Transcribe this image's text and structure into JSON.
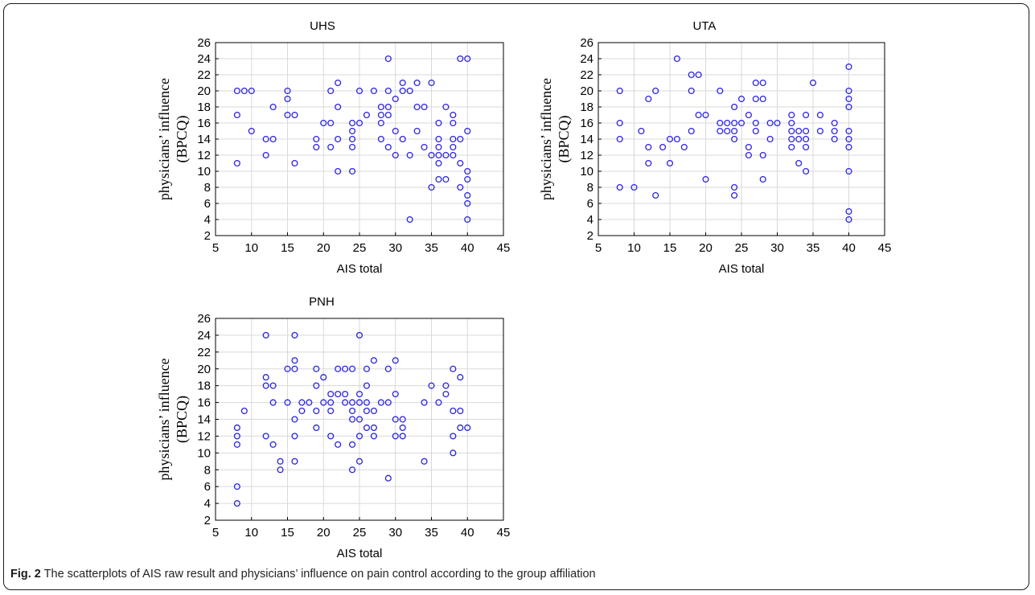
{
  "caption": {
    "label": "Fig. 2",
    "text": "The scatterplots of AIS raw result and physicians’ influence on pain control according to the group affiliation"
  },
  "colors": {
    "marker": "#2a24dc",
    "grid": "#d9d9d9",
    "axis": "#000000"
  },
  "chart_data": [
    {
      "type": "scatter",
      "title": "UHS",
      "xlabel": "AIS total",
      "ylabel_lines": [
        "physicians’ influence",
        "(BPCQ)"
      ],
      "xlim": [
        5,
        45
      ],
      "ylim": [
        2,
        26
      ],
      "xticks": [
        5,
        10,
        15,
        20,
        25,
        30,
        35,
        40,
        45
      ],
      "yticks": [
        2,
        4,
        6,
        8,
        10,
        12,
        14,
        16,
        18,
        20,
        22,
        24,
        26
      ],
      "grid": true,
      "points": [
        [
          8,
          20
        ],
        [
          8,
          17
        ],
        [
          8,
          11
        ],
        [
          9,
          20
        ],
        [
          10,
          20
        ],
        [
          10,
          15
        ],
        [
          12,
          14
        ],
        [
          12,
          12
        ],
        [
          13,
          18
        ],
        [
          13,
          14
        ],
        [
          15,
          20
        ],
        [
          15,
          19
        ],
        [
          15,
          17
        ],
        [
          16,
          17
        ],
        [
          16,
          11
        ],
        [
          19,
          14
        ],
        [
          19,
          13
        ],
        [
          20,
          16
        ],
        [
          21,
          20
        ],
        [
          21,
          16
        ],
        [
          21,
          13
        ],
        [
          22,
          21
        ],
        [
          22,
          18
        ],
        [
          22,
          14
        ],
        [
          22,
          10
        ],
        [
          24,
          16
        ],
        [
          24,
          15
        ],
        [
          24,
          14
        ],
        [
          24,
          13
        ],
        [
          24,
          10
        ],
        [
          25,
          20
        ],
        [
          25,
          16
        ],
        [
          26,
          17
        ],
        [
          27,
          20
        ],
        [
          28,
          18
        ],
        [
          28,
          17
        ],
        [
          28,
          16
        ],
        [
          28,
          14
        ],
        [
          29,
          24
        ],
        [
          29,
          20
        ],
        [
          29,
          18
        ],
        [
          29,
          17
        ],
        [
          29,
          13
        ],
        [
          30,
          19
        ],
        [
          30,
          15
        ],
        [
          30,
          12
        ],
        [
          31,
          21
        ],
        [
          31,
          20
        ],
        [
          31,
          14
        ],
        [
          32,
          20
        ],
        [
          32,
          12
        ],
        [
          32,
          4
        ],
        [
          33,
          21
        ],
        [
          33,
          18
        ],
        [
          33,
          15
        ],
        [
          34,
          18
        ],
        [
          34,
          13
        ],
        [
          35,
          21
        ],
        [
          35,
          12
        ],
        [
          35,
          8
        ],
        [
          36,
          16
        ],
        [
          36,
          14
        ],
        [
          36,
          13
        ],
        [
          36,
          12
        ],
        [
          36,
          11
        ],
        [
          36,
          9
        ],
        [
          37,
          18
        ],
        [
          37,
          12
        ],
        [
          37,
          9
        ],
        [
          38,
          17
        ],
        [
          38,
          16
        ],
        [
          38,
          14
        ],
        [
          38,
          13
        ],
        [
          38,
          12
        ],
        [
          39,
          24
        ],
        [
          39,
          14
        ],
        [
          39,
          11
        ],
        [
          39,
          8
        ],
        [
          40,
          24
        ],
        [
          40,
          15
        ],
        [
          40,
          10
        ],
        [
          40,
          9
        ],
        [
          40,
          7
        ],
        [
          40,
          6
        ],
        [
          40,
          4
        ]
      ]
    },
    {
      "type": "scatter",
      "title": "UTA",
      "xlabel": "AIS total",
      "ylabel_lines": [
        "physicians’ influence",
        "(BPCQ)"
      ],
      "xlim": [
        5,
        45
      ],
      "ylim": [
        2,
        26
      ],
      "xticks": [
        5,
        10,
        15,
        20,
        25,
        30,
        35,
        40,
        45
      ],
      "yticks": [
        2,
        4,
        6,
        8,
        10,
        12,
        14,
        16,
        18,
        20,
        22,
        24,
        26
      ],
      "grid": true,
      "points": [
        [
          8,
          20
        ],
        [
          8,
          16
        ],
        [
          8,
          14
        ],
        [
          8,
          8
        ],
        [
          10,
          8
        ],
        [
          11,
          15
        ],
        [
          12,
          19
        ],
        [
          12,
          13
        ],
        [
          12,
          11
        ],
        [
          13,
          20
        ],
        [
          13,
          7
        ],
        [
          14,
          13
        ],
        [
          15,
          14
        ],
        [
          15,
          11
        ],
        [
          16,
          24
        ],
        [
          16,
          14
        ],
        [
          17,
          13
        ],
        [
          18,
          22
        ],
        [
          18,
          20
        ],
        [
          18,
          15
        ],
        [
          19,
          22
        ],
        [
          19,
          17
        ],
        [
          20,
          17
        ],
        [
          20,
          9
        ],
        [
          22,
          20
        ],
        [
          22,
          16
        ],
        [
          22,
          15
        ],
        [
          23,
          16
        ],
        [
          23,
          15
        ],
        [
          24,
          18
        ],
        [
          24,
          16
        ],
        [
          24,
          15
        ],
        [
          24,
          14
        ],
        [
          24,
          8
        ],
        [
          24,
          7
        ],
        [
          25,
          19
        ],
        [
          25,
          16
        ],
        [
          26,
          17
        ],
        [
          26,
          13
        ],
        [
          26,
          12
        ],
        [
          27,
          21
        ],
        [
          27,
          19
        ],
        [
          27,
          16
        ],
        [
          27,
          15
        ],
        [
          28,
          21
        ],
        [
          28,
          19
        ],
        [
          28,
          12
        ],
        [
          28,
          9
        ],
        [
          29,
          16
        ],
        [
          29,
          14
        ],
        [
          30,
          16
        ],
        [
          32,
          17
        ],
        [
          32,
          16
        ],
        [
          32,
          15
        ],
        [
          32,
          14
        ],
        [
          32,
          13
        ],
        [
          33,
          15
        ],
        [
          33,
          14
        ],
        [
          33,
          11
        ],
        [
          34,
          17
        ],
        [
          34,
          15
        ],
        [
          34,
          14
        ],
        [
          34,
          13
        ],
        [
          34,
          10
        ],
        [
          35,
          21
        ],
        [
          36,
          17
        ],
        [
          36,
          15
        ],
        [
          38,
          16
        ],
        [
          38,
          15
        ],
        [
          38,
          14
        ],
        [
          40,
          23
        ],
        [
          40,
          20
        ],
        [
          40,
          19
        ],
        [
          40,
          18
        ],
        [
          40,
          15
        ],
        [
          40,
          14
        ],
        [
          40,
          13
        ],
        [
          40,
          10
        ],
        [
          40,
          5
        ],
        [
          40,
          4
        ]
      ]
    },
    {
      "type": "scatter",
      "title": "PNH",
      "xlabel": "AIS total",
      "ylabel_lines": [
        "physicians’ influence",
        "(BPCQ)"
      ],
      "xlim": [
        5,
        45
      ],
      "ylim": [
        2,
        26
      ],
      "xticks": [
        5,
        10,
        15,
        20,
        25,
        30,
        35,
        40,
        45
      ],
      "yticks": [
        2,
        4,
        6,
        8,
        10,
        12,
        14,
        16,
        18,
        20,
        22,
        24,
        26
      ],
      "grid": true,
      "points": [
        [
          8,
          13
        ],
        [
          8,
          12
        ],
        [
          8,
          11
        ],
        [
          8,
          6
        ],
        [
          8,
          4
        ],
        [
          9,
          15
        ],
        [
          12,
          24
        ],
        [
          12,
          19
        ],
        [
          12,
          18
        ],
        [
          12,
          12
        ],
        [
          13,
          18
        ],
        [
          13,
          16
        ],
        [
          13,
          11
        ],
        [
          14,
          9
        ],
        [
          14,
          8
        ],
        [
          15,
          20
        ],
        [
          15,
          16
        ],
        [
          16,
          24
        ],
        [
          16,
          21
        ],
        [
          16,
          20
        ],
        [
          16,
          14
        ],
        [
          16,
          12
        ],
        [
          16,
          9
        ],
        [
          17,
          16
        ],
        [
          17,
          15
        ],
        [
          18,
          16
        ],
        [
          19,
          20
        ],
        [
          19,
          18
        ],
        [
          19,
          15
        ],
        [
          19,
          13
        ],
        [
          20,
          19
        ],
        [
          20,
          16
        ],
        [
          21,
          17
        ],
        [
          21,
          16
        ],
        [
          21,
          15
        ],
        [
          21,
          12
        ],
        [
          22,
          20
        ],
        [
          22,
          17
        ],
        [
          22,
          11
        ],
        [
          23,
          20
        ],
        [
          23,
          17
        ],
        [
          23,
          16
        ],
        [
          24,
          20
        ],
        [
          24,
          16
        ],
        [
          24,
          15
        ],
        [
          24,
          14
        ],
        [
          24,
          11
        ],
        [
          24,
          8
        ],
        [
          25,
          24
        ],
        [
          25,
          17
        ],
        [
          25,
          16
        ],
        [
          25,
          14
        ],
        [
          25,
          12
        ],
        [
          25,
          9
        ],
        [
          26,
          20
        ],
        [
          26,
          18
        ],
        [
          26,
          16
        ],
        [
          26,
          15
        ],
        [
          26,
          13
        ],
        [
          27,
          21
        ],
        [
          27,
          15
        ],
        [
          27,
          13
        ],
        [
          27,
          12
        ],
        [
          28,
          16
        ],
        [
          29,
          20
        ],
        [
          29,
          16
        ],
        [
          29,
          7
        ],
        [
          30,
          21
        ],
        [
          30,
          17
        ],
        [
          30,
          14
        ],
        [
          30,
          12
        ],
        [
          31,
          14
        ],
        [
          31,
          13
        ],
        [
          31,
          12
        ],
        [
          34,
          16
        ],
        [
          34,
          9
        ],
        [
          35,
          18
        ],
        [
          36,
          16
        ],
        [
          37,
          18
        ],
        [
          37,
          17
        ],
        [
          38,
          20
        ],
        [
          38,
          15
        ],
        [
          38,
          12
        ],
        [
          38,
          10
        ],
        [
          39,
          19
        ],
        [
          39,
          15
        ],
        [
          39,
          13
        ],
        [
          40,
          13
        ]
      ]
    }
  ]
}
